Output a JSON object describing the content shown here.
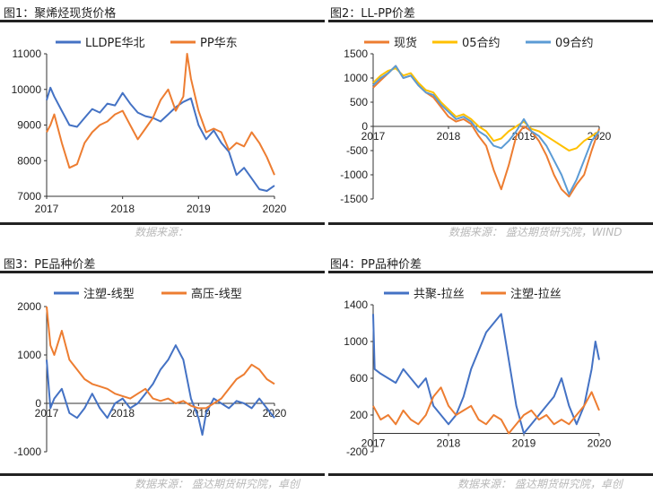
{
  "panels": [
    {
      "title": "图1：聚烯烃现货价格"
    },
    {
      "title": "图2：LL-PP价差"
    },
    {
      "title": "图3：PE品种价差"
    },
    {
      "title": "图4：PP品种价差"
    }
  ],
  "sources": {
    "row1_left": "数据来源：",
    "row1_right": "数据来源：  盛达期货研究院，WIND",
    "row2_left": "数据来源：  盛达期货研究院，卓创",
    "row2_right": "数据来源：  盛达期货研究院，卓创"
  },
  "chart_data": [
    {
      "type": "line",
      "title": "",
      "x_ticks": [
        "2017",
        "2018",
        "2019",
        "2020"
      ],
      "y_ticks": [
        7000,
        8000,
        9000,
        10000,
        11000
      ],
      "ylim": [
        7000,
        11000
      ],
      "legend_position": "top",
      "series": [
        {
          "name": "LLDPE华北",
          "color": "#4472c4",
          "x": [
            2017.0,
            2017.05,
            2017.1,
            2017.2,
            2017.3,
            2017.4,
            2017.5,
            2017.6,
            2017.7,
            2017.8,
            2017.9,
            2018.0,
            2018.1,
            2018.2,
            2018.3,
            2018.4,
            2018.5,
            2018.6,
            2018.7,
            2018.8,
            2018.9,
            2019.0,
            2019.1,
            2019.2,
            2019.3,
            2019.4,
            2019.5,
            2019.6,
            2019.7,
            2019.8,
            2019.9,
            2020.0
          ],
          "y": [
            9700,
            10050,
            9800,
            9400,
            9000,
            8950,
            9200,
            9450,
            9350,
            9600,
            9550,
            9900,
            9600,
            9350,
            9250,
            9200,
            9100,
            9300,
            9500,
            9650,
            9750,
            9000,
            8600,
            8850,
            8500,
            8250,
            7600,
            7800,
            7500,
            7200,
            7150,
            7300
          ]
        },
        {
          "name": "PP华东",
          "color": "#ed7d31",
          "x": [
            2017.0,
            2017.05,
            2017.1,
            2017.2,
            2017.3,
            2017.4,
            2017.5,
            2017.6,
            2017.7,
            2017.8,
            2017.9,
            2018.0,
            2018.1,
            2018.2,
            2018.3,
            2018.4,
            2018.5,
            2018.6,
            2018.7,
            2018.8,
            2018.85,
            2018.9,
            2019.0,
            2019.1,
            2019.2,
            2019.3,
            2019.4,
            2019.5,
            2019.6,
            2019.7,
            2019.8,
            2019.9,
            2020.0
          ],
          "y": [
            8800,
            9000,
            9300,
            8500,
            7800,
            7900,
            8500,
            8800,
            9000,
            9100,
            9300,
            9400,
            9000,
            8600,
            8900,
            9200,
            9700,
            10000,
            9400,
            9800,
            11000,
            10300,
            9400,
            8800,
            8900,
            8800,
            8300,
            8500,
            8400,
            8800,
            8500,
            8100,
            7600
          ]
        }
      ]
    },
    {
      "type": "line",
      "title": "",
      "x_ticks": [
        "2017",
        "2018",
        "2019",
        "2020"
      ],
      "y_ticks": [
        -1500,
        -1000,
        -500,
        0,
        500,
        1000,
        1500
      ],
      "ylim": [
        -1500,
        1500
      ],
      "legend_position": "top",
      "series": [
        {
          "name": "现货",
          "color": "#ed7d31",
          "x": [
            2017.0,
            2017.1,
            2017.2,
            2017.3,
            2017.4,
            2017.5,
            2017.6,
            2017.7,
            2017.8,
            2017.9,
            2018.0,
            2018.1,
            2018.2,
            2018.3,
            2018.4,
            2018.5,
            2018.6,
            2018.7,
            2018.8,
            2018.9,
            2019.0,
            2019.1,
            2019.2,
            2019.3,
            2019.4,
            2019.5,
            2019.6,
            2019.7,
            2019.8,
            2019.9,
            2020.0
          ],
          "y": [
            800,
            950,
            1100,
            1250,
            1000,
            1050,
            850,
            700,
            600,
            400,
            200,
            100,
            150,
            50,
            -200,
            -400,
            -900,
            -1300,
            -800,
            -200,
            0,
            -100,
            -300,
            -600,
            -1000,
            -1300,
            -1450,
            -1200,
            -1000,
            -500,
            -50
          ]
        },
        {
          "name": "05合约",
          "color": "#ffc000",
          "x": [
            2017.0,
            2017.1,
            2017.2,
            2017.3,
            2017.4,
            2017.5,
            2017.6,
            2017.7,
            2017.8,
            2017.9,
            2018.0,
            2018.1,
            2018.2,
            2018.3,
            2018.4,
            2018.5,
            2018.6,
            2018.7,
            2018.8,
            2018.9,
            2019.0,
            2019.1,
            2019.2,
            2019.3,
            2019.4,
            2019.5,
            2019.6,
            2019.7,
            2019.8,
            2019.9,
            2020.0
          ],
          "y": [
            900,
            1050,
            1150,
            1200,
            1050,
            1100,
            900,
            750,
            700,
            500,
            350,
            200,
            250,
            150,
            0,
            -100,
            -300,
            -250,
            -100,
            0,
            100,
            -50,
            -100,
            -200,
            -300,
            -400,
            -500,
            -450,
            -300,
            -200,
            -100
          ]
        },
        {
          "name": "09合约",
          "color": "#5b9bd5",
          "x": [
            2017.0,
            2017.1,
            2017.2,
            2017.3,
            2017.4,
            2017.5,
            2017.6,
            2017.7,
            2017.8,
            2017.9,
            2018.0,
            2018.1,
            2018.2,
            2018.3,
            2018.4,
            2018.5,
            2018.6,
            2018.7,
            2018.8,
            2018.9,
            2019.0,
            2019.1,
            2019.2,
            2019.3,
            2019.4,
            2019.5,
            2019.6,
            2019.7,
            2019.8,
            2019.9,
            2020.0
          ],
          "y": [
            850,
            1000,
            1100,
            1250,
            1000,
            1050,
            850,
            700,
            650,
            450,
            300,
            150,
            200,
            100,
            -100,
            -200,
            -400,
            -450,
            -300,
            -100,
            150,
            -100,
            -200,
            -400,
            -700,
            -1000,
            -1400,
            -1100,
            -700,
            -300,
            -100
          ]
        }
      ]
    },
    {
      "type": "line",
      "title": "",
      "x_ticks": [
        "2017",
        "2018",
        "2019",
        "2020"
      ],
      "y_ticks": [
        -1000,
        0,
        1000,
        2000
      ],
      "ylim": [
        -1000,
        2000
      ],
      "legend_position": "top",
      "series": [
        {
          "name": "注塑-线型",
          "color": "#4472c4",
          "x": [
            2017.0,
            2017.05,
            2017.1,
            2017.2,
            2017.3,
            2017.4,
            2017.5,
            2017.6,
            2017.7,
            2017.8,
            2017.9,
            2018.0,
            2018.1,
            2018.2,
            2018.3,
            2018.4,
            2018.5,
            2018.6,
            2018.7,
            2018.8,
            2018.9,
            2019.0,
            2019.05,
            2019.1,
            2019.2,
            2019.3,
            2019.4,
            2019.5,
            2019.6,
            2019.7,
            2019.8,
            2019.9,
            2020.0
          ],
          "y": [
            900,
            -100,
            100,
            300,
            -200,
            -300,
            -100,
            200,
            -100,
            -300,
            0,
            100,
            -100,
            0,
            200,
            400,
            700,
            900,
            1200,
            900,
            100,
            -300,
            -650,
            -200,
            100,
            0,
            -100,
            50,
            0,
            -100,
            100,
            -100,
            -300
          ]
        },
        {
          "name": "高压-线型",
          "color": "#ed7d31",
          "x": [
            2017.0,
            2017.05,
            2017.1,
            2017.2,
            2017.3,
            2017.4,
            2017.5,
            2017.6,
            2017.7,
            2017.8,
            2017.9,
            2018.0,
            2018.1,
            2018.2,
            2018.3,
            2018.4,
            2018.5,
            2018.6,
            2018.7,
            2018.8,
            2018.9,
            2019.0,
            2019.1,
            2019.2,
            2019.3,
            2019.4,
            2019.5,
            2019.6,
            2019.7,
            2019.8,
            2019.9,
            2020.0
          ],
          "y": [
            2000,
            1200,
            1000,
            1500,
            900,
            700,
            500,
            400,
            350,
            300,
            200,
            150,
            100,
            200,
            300,
            100,
            50,
            100,
            0,
            50,
            -50,
            -100,
            -100,
            0,
            100,
            300,
            500,
            600,
            800,
            700,
            500,
            400
          ]
        }
      ]
    },
    {
      "type": "line",
      "title": "",
      "x_ticks": [
        "2017",
        "2018",
        "2019",
        "2020"
      ],
      "y_ticks": [
        -200,
        200,
        600,
        1000,
        1400
      ],
      "ylim": [
        -200,
        1400
      ],
      "legend_position": "top",
      "series": [
        {
          "name": "共聚-拉丝",
          "color": "#4472c4",
          "x": [
            2017.0,
            2017.02,
            2017.1,
            2017.2,
            2017.3,
            2017.4,
            2017.5,
            2017.6,
            2017.7,
            2017.8,
            2017.9,
            2018.0,
            2018.1,
            2018.2,
            2018.3,
            2018.4,
            2018.5,
            2018.6,
            2018.7,
            2018.8,
            2018.9,
            2019.0,
            2019.1,
            2019.2,
            2019.3,
            2019.4,
            2019.5,
            2019.6,
            2019.7,
            2019.8,
            2019.9,
            2019.95,
            2020.0
          ],
          "y": [
            1300,
            700,
            650,
            600,
            550,
            700,
            600,
            500,
            600,
            300,
            200,
            100,
            200,
            400,
            700,
            900,
            1100,
            1200,
            1300,
            800,
            300,
            0,
            100,
            200,
            300,
            400,
            600,
            300,
            100,
            300,
            700,
            1000,
            800
          ]
        },
        {
          "name": "注塑-拉丝",
          "color": "#ed7d31",
          "x": [
            2017.0,
            2017.1,
            2017.2,
            2017.3,
            2017.4,
            2017.5,
            2017.6,
            2017.7,
            2017.8,
            2017.9,
            2018.0,
            2018.1,
            2018.2,
            2018.3,
            2018.4,
            2018.5,
            2018.6,
            2018.7,
            2018.8,
            2018.9,
            2019.0,
            2019.1,
            2019.2,
            2019.3,
            2019.4,
            2019.5,
            2019.6,
            2019.7,
            2019.8,
            2019.9,
            2020.0
          ],
          "y": [
            300,
            150,
            200,
            100,
            250,
            150,
            100,
            200,
            400,
            500,
            300,
            200,
            250,
            300,
            150,
            100,
            200,
            150,
            0,
            100,
            200,
            250,
            150,
            200,
            100,
            150,
            100,
            200,
            300,
            450,
            250
          ]
        }
      ]
    }
  ]
}
